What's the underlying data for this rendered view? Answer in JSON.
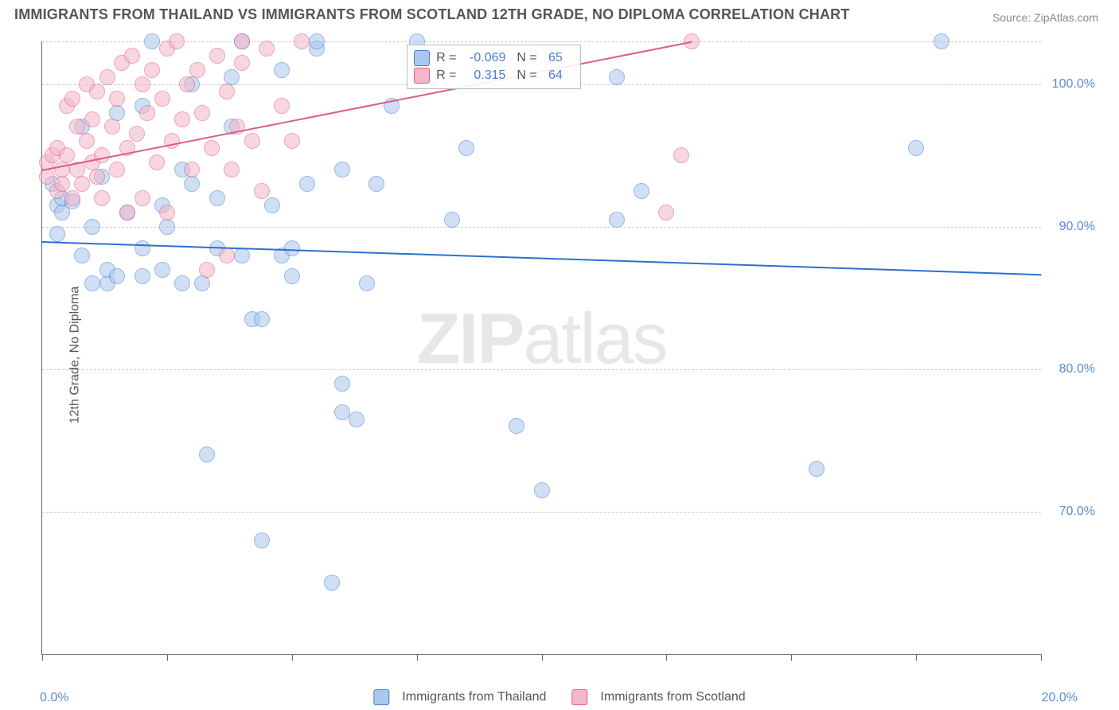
{
  "title": "IMMIGRANTS FROM THAILAND VS IMMIGRANTS FROM SCOTLAND 12TH GRADE, NO DIPLOMA CORRELATION CHART",
  "source": "Source: ZipAtlas.com",
  "watermark_bold": "ZIP",
  "watermark_thin": "atlas",
  "ylabel": "12th Grade, No Diploma",
  "chart": {
    "type": "scatter",
    "xlim": [
      0.0,
      20.0
    ],
    "ylim": [
      60.0,
      103.0
    ],
    "xunit": "%",
    "yunit": "%",
    "y_gridlines": [
      70.0,
      80.0,
      90.0,
      100.0,
      103.0
    ],
    "x_gridlines": [
      0.0,
      2.5,
      5.0,
      7.5,
      10.0,
      12.5,
      15.0,
      17.5,
      20.0
    ],
    "y_tick_labels": [
      "70.0%",
      "80.0%",
      "90.0%",
      "100.0%"
    ],
    "y_tick_values": [
      70.0,
      80.0,
      90.0,
      100.0
    ],
    "x_tick_labels": {
      "left": "0.0%",
      "right": "20.0%"
    },
    "background_color": "#ffffff",
    "grid_color": "#cccccc",
    "axis_color": "#666666",
    "point_radius": 9,
    "point_opacity": 0.55,
    "series": [
      {
        "key": "thailand",
        "legend_label": "Immigrants from Thailand",
        "fill": "#a9c8ee",
        "stroke": "#4a7bd0",
        "trend": {
          "y_at_xmin": 89.0,
          "y_at_xmax": 86.7,
          "color": "#2f6fd0"
        },
        "stats": {
          "R": "-0.069",
          "N": "65"
        },
        "points": [
          [
            0.2,
            93.0
          ],
          [
            0.3,
            91.5
          ],
          [
            0.3,
            89.5
          ],
          [
            0.4,
            91.0
          ],
          [
            0.4,
            92.0
          ],
          [
            0.6,
            91.8
          ],
          [
            0.8,
            97.0
          ],
          [
            0.8,
            88.0
          ],
          [
            1.0,
            86.0
          ],
          [
            1.0,
            90.0
          ],
          [
            1.2,
            93.5
          ],
          [
            1.3,
            86.0
          ],
          [
            1.3,
            87.0
          ],
          [
            1.5,
            86.5
          ],
          [
            1.5,
            98.0
          ],
          [
            1.7,
            91.0
          ],
          [
            2.0,
            88.5
          ],
          [
            2.0,
            98.5
          ],
          [
            2.0,
            86.5
          ],
          [
            2.2,
            103.0
          ],
          [
            2.4,
            91.5
          ],
          [
            2.4,
            87.0
          ],
          [
            2.5,
            90.0
          ],
          [
            2.8,
            86.0
          ],
          [
            2.8,
            94.0
          ],
          [
            3.0,
            93.0
          ],
          [
            3.0,
            100.0
          ],
          [
            3.2,
            86.0
          ],
          [
            3.3,
            74.0
          ],
          [
            3.5,
            92.0
          ],
          [
            3.5,
            88.5
          ],
          [
            3.8,
            100.5
          ],
          [
            3.8,
            97.0
          ],
          [
            4.0,
            88.0
          ],
          [
            4.0,
            103.0
          ],
          [
            4.2,
            83.5
          ],
          [
            4.4,
            68.0
          ],
          [
            4.4,
            83.5
          ],
          [
            4.6,
            91.5
          ],
          [
            4.8,
            88.0
          ],
          [
            4.8,
            101.0
          ],
          [
            5.0,
            86.5
          ],
          [
            5.0,
            88.5
          ],
          [
            5.3,
            93.0
          ],
          [
            5.5,
            102.5
          ],
          [
            5.5,
            103.0
          ],
          [
            5.8,
            65.0
          ],
          [
            6.0,
            77.0
          ],
          [
            6.0,
            94.0
          ],
          [
            6.0,
            79.0
          ],
          [
            6.3,
            76.5
          ],
          [
            6.5,
            86.0
          ],
          [
            6.7,
            93.0
          ],
          [
            7.0,
            98.5
          ],
          [
            7.5,
            103.0
          ],
          [
            8.2,
            90.5
          ],
          [
            8.5,
            95.5
          ],
          [
            9.5,
            76.0
          ],
          [
            10.0,
            71.5
          ],
          [
            11.5,
            90.5
          ],
          [
            11.5,
            100.5
          ],
          [
            12.0,
            92.5
          ],
          [
            15.5,
            73.0
          ],
          [
            17.5,
            95.5
          ],
          [
            18.0,
            103.0
          ]
        ]
      },
      {
        "key": "scotland",
        "legend_label": "Immigrants from Scotland",
        "fill": "#f4b6c8",
        "stroke": "#e05b87",
        "trend": {
          "y_at_xmin": 94.0,
          "y_at_xmax": 103.0,
          "x_end": 13.0,
          "color": "#e05b87"
        },
        "stats": {
          "R": "0.315",
          "N": "64"
        },
        "points": [
          [
            0.1,
            94.5
          ],
          [
            0.1,
            93.5
          ],
          [
            0.2,
            95.0
          ],
          [
            0.3,
            92.5
          ],
          [
            0.3,
            95.5
          ],
          [
            0.4,
            93.0
          ],
          [
            0.4,
            94.0
          ],
          [
            0.5,
            98.5
          ],
          [
            0.5,
            95.0
          ],
          [
            0.6,
            92.0
          ],
          [
            0.6,
            99.0
          ],
          [
            0.7,
            94.0
          ],
          [
            0.7,
            97.0
          ],
          [
            0.8,
            93.0
          ],
          [
            0.9,
            100.0
          ],
          [
            0.9,
            96.0
          ],
          [
            1.0,
            94.5
          ],
          [
            1.0,
            97.5
          ],
          [
            1.1,
            93.5
          ],
          [
            1.1,
            99.5
          ],
          [
            1.2,
            95.0
          ],
          [
            1.2,
            92.0
          ],
          [
            1.3,
            100.5
          ],
          [
            1.4,
            97.0
          ],
          [
            1.5,
            94.0
          ],
          [
            1.5,
            99.0
          ],
          [
            1.6,
            101.5
          ],
          [
            1.7,
            91.0
          ],
          [
            1.7,
            95.5
          ],
          [
            1.8,
            102.0
          ],
          [
            1.9,
            96.5
          ],
          [
            2.0,
            100.0
          ],
          [
            2.0,
            92.0
          ],
          [
            2.1,
            98.0
          ],
          [
            2.2,
            101.0
          ],
          [
            2.3,
            94.5
          ],
          [
            2.4,
            99.0
          ],
          [
            2.5,
            102.5
          ],
          [
            2.5,
            91.0
          ],
          [
            2.6,
            96.0
          ],
          [
            2.7,
            103.0
          ],
          [
            2.8,
            97.5
          ],
          [
            2.9,
            100.0
          ],
          [
            3.0,
            94.0
          ],
          [
            3.1,
            101.0
          ],
          [
            3.2,
            98.0
          ],
          [
            3.3,
            87.0
          ],
          [
            3.4,
            95.5
          ],
          [
            3.5,
            102.0
          ],
          [
            3.7,
            88.0
          ],
          [
            3.7,
            99.5
          ],
          [
            3.8,
            94.0
          ],
          [
            3.9,
            97.0
          ],
          [
            4.0,
            103.0
          ],
          [
            4.0,
            101.5
          ],
          [
            4.2,
            96.0
          ],
          [
            4.4,
            92.5
          ],
          [
            4.5,
            102.5
          ],
          [
            4.8,
            98.5
          ],
          [
            5.0,
            96.0
          ],
          [
            5.2,
            103.0
          ],
          [
            12.5,
            91.0
          ],
          [
            12.8,
            95.0
          ],
          [
            13.0,
            103.0
          ]
        ]
      }
    ]
  },
  "stats_box": {
    "R_prefix": "R =",
    "N_prefix": "N ="
  }
}
